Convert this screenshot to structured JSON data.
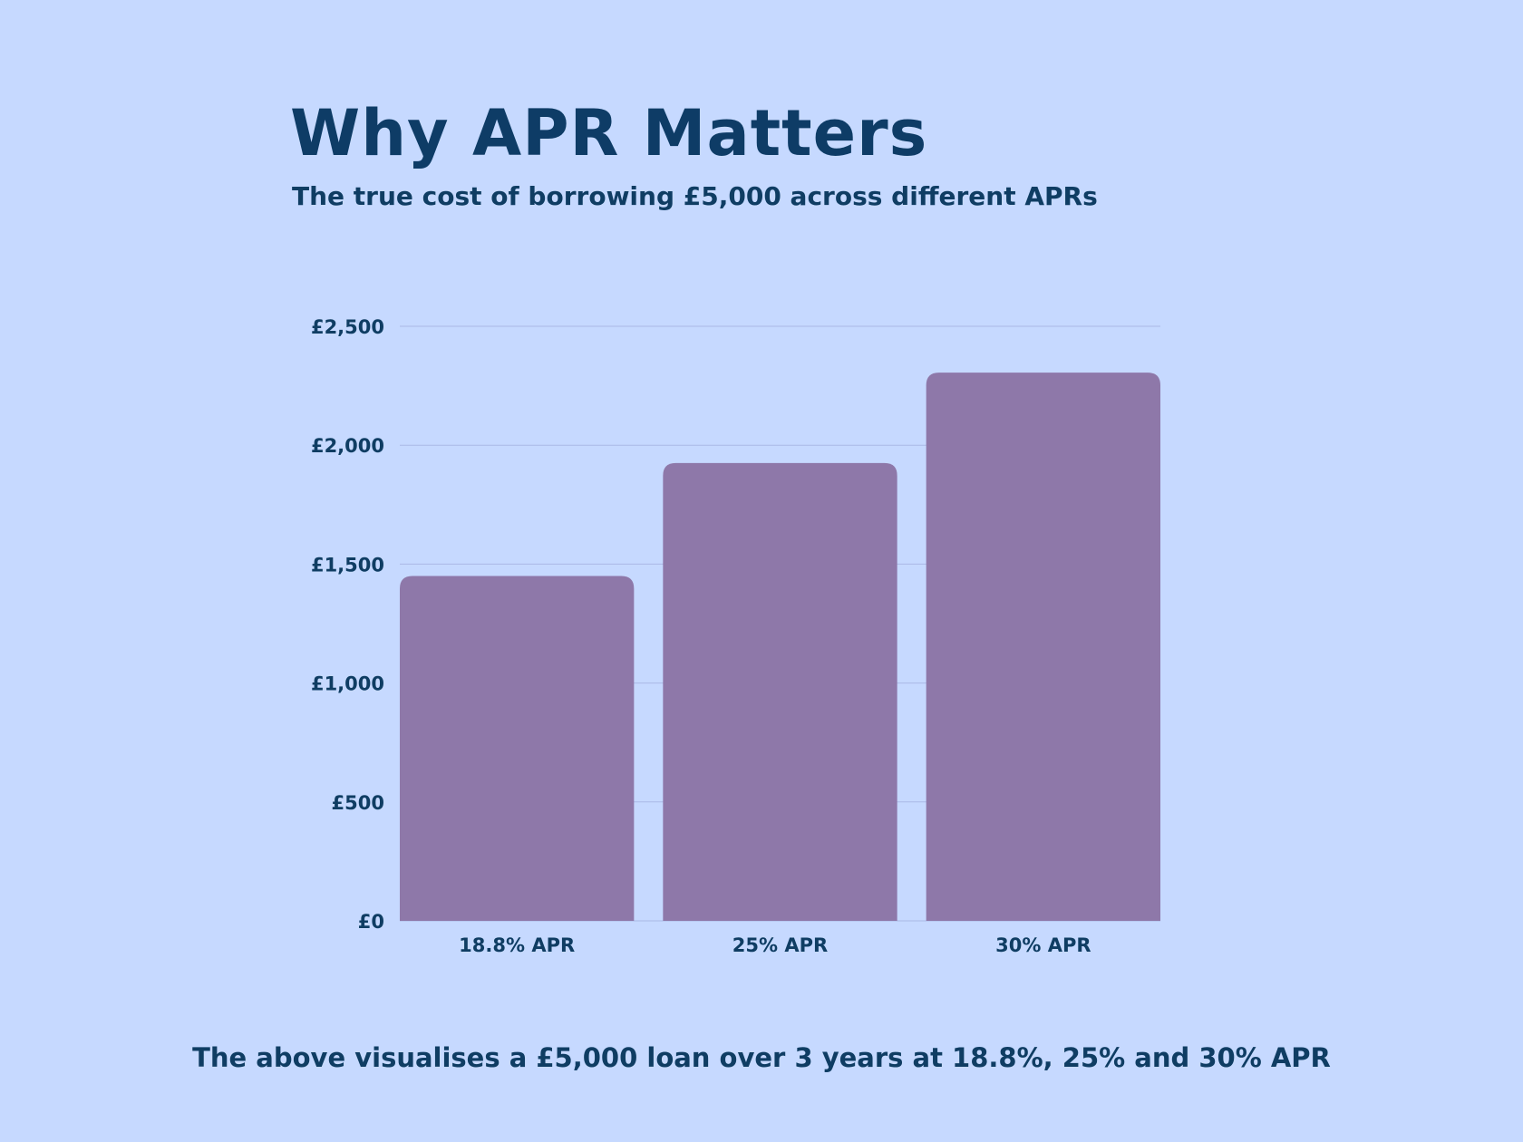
{
  "header": {
    "title": "Why APR Matters",
    "subtitle": "The true cost of borrowing £5,000 across different APRs"
  },
  "footer": {
    "note": "The above visualises a £5,000 loan over 3 years at 18.8%, 25% and 30% APR"
  },
  "colors": {
    "background": "#c6d9ff",
    "bar": "#8e78a9",
    "text": "#0f3d63",
    "grid": "#aab9e6"
  },
  "chart_data": {
    "type": "bar",
    "categories": [
      "18.8% APR",
      "25% APR",
      "30% APR"
    ],
    "values": [
      1450,
      1925,
      2305
    ],
    "ylim": [
      0,
      2500
    ],
    "yticks": [
      0,
      500,
      1000,
      1500,
      2000,
      2500
    ],
    "ytick_labels": [
      "£0",
      "£500",
      "£1,000",
      "£1,500",
      "£2,000",
      "£2,500"
    ],
    "grid": true,
    "legend": false
  }
}
